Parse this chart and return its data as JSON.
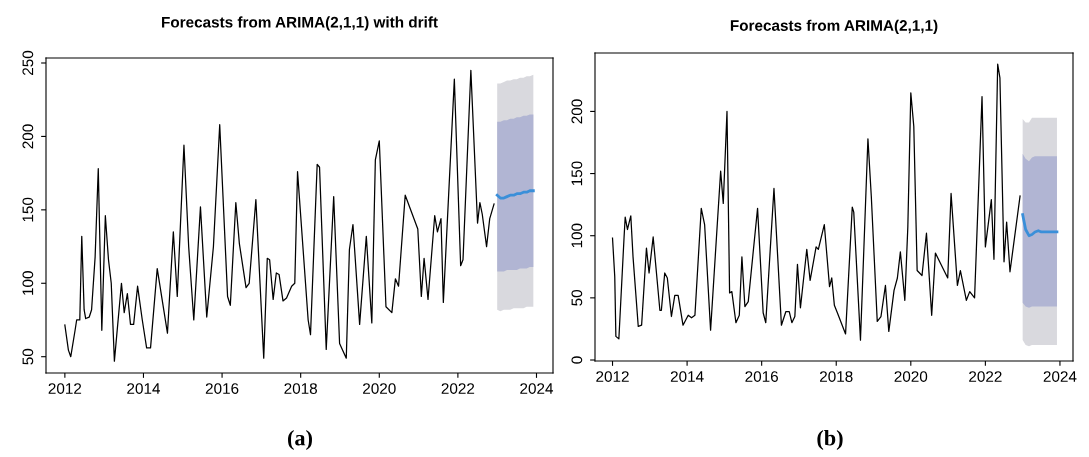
{
  "chart_data": [
    {
      "type": "line",
      "title": "Forecasts from ARIMA(2,1,1) with drift",
      "annotations": [
        "(a)"
      ],
      "xlim": [
        2011.52,
        2024.42
      ],
      "xticks": [
        2012,
        2014,
        2016,
        2018,
        2020,
        2022,
        2024
      ],
      "ylim": [
        38.9,
        253.4
      ],
      "yticks": [
        50,
        100,
        150,
        200,
        250
      ],
      "grid": false,
      "legend": false,
      "series": [
        {
          "color": "#d9d9de",
          "x": [
            2023.0,
            2023.08,
            2023.17,
            2023.25,
            2023.33,
            2023.42,
            2023.5,
            2023.58,
            2023.67,
            2023.75,
            2023.83,
            2023.92
          ],
          "values": [
            null,
            null,
            null,
            null,
            null,
            null,
            null,
            null,
            null,
            null,
            null,
            null
          ],
          "lower": [
            82,
            81,
            82,
            82,
            82,
            83,
            83,
            83,
            83,
            84,
            84,
            84
          ],
          "upper": [
            236,
            236,
            237,
            238,
            238,
            239,
            239,
            240,
            240,
            241,
            241,
            242
          ]
        },
        {
          "color": "#b1b5d3",
          "x": [
            2023.0,
            2023.08,
            2023.17,
            2023.25,
            2023.33,
            2023.42,
            2023.5,
            2023.58,
            2023.67,
            2023.75,
            2023.83,
            2023.92
          ],
          "values": [
            null,
            null,
            null,
            null,
            null,
            null,
            null,
            null,
            null,
            null,
            null,
            null
          ],
          "lower": [
            108,
            108,
            108,
            109,
            109,
            109,
            109,
            110,
            110,
            110,
            111,
            111
          ],
          "upper": [
            210,
            210,
            211,
            211,
            212,
            212,
            213,
            213,
            214,
            214,
            215,
            215
          ]
        },
        {
          "color": "#000000",
          "x": [
            2012.0,
            2012.09,
            2012.15,
            2012.26,
            2012.3,
            2012.38,
            2012.43,
            2012.49,
            2012.53,
            2012.62,
            2012.68,
            2012.77,
            2012.85,
            2012.94,
            2013.03,
            2013.11,
            2013.18,
            2013.26,
            2013.44,
            2013.51,
            2013.59,
            2013.67,
            2013.75,
            2013.85,
            2013.97,
            2014.08,
            2014.18,
            2014.35,
            2014.61,
            2014.76,
            2014.86,
            2015.03,
            2015.15,
            2015.28,
            2015.45,
            2015.61,
            2015.78,
            2015.94,
            2016.14,
            2016.21,
            2016.35,
            2016.44,
            2016.61,
            2016.69,
            2016.86,
            2017.06,
            2017.15,
            2017.21,
            2017.3,
            2017.38,
            2017.45,
            2017.55,
            2017.64,
            2017.77,
            2017.85,
            2017.92,
            2018.19,
            2018.25,
            2018.42,
            2018.48,
            2018.65,
            2018.84,
            2018.99,
            2019.16,
            2019.24,
            2019.33,
            2019.5,
            2019.67,
            2019.81,
            2019.9,
            2020.0,
            2020.17,
            2020.32,
            2020.41,
            2020.49,
            2020.66,
            2020.98,
            2021.07,
            2021.14,
            2021.24,
            2021.41,
            2021.48,
            2021.57,
            2021.63,
            2021.91,
            2022.07,
            2022.13,
            2022.33,
            2022.5,
            2022.56,
            2022.62,
            2022.73,
            2022.81,
            2022.92
          ],
          "values": [
            71.6,
            54.5,
            50,
            68,
            75,
            75,
            132,
            82,
            76,
            77,
            82,
            118,
            178,
            68,
            146,
            116,
            100,
            47,
            100,
            80,
            93,
            72,
            72,
            98,
            75,
            56,
            56,
            110,
            66,
            135,
            91,
            194,
            125,
            75,
            152,
            77,
            125,
            208,
            91,
            85,
            155,
            127,
            97,
            100,
            157,
            49,
            117,
            116,
            89,
            107,
            106,
            88,
            90,
            98,
            100,
            176,
            75,
            65,
            181,
            179,
            55,
            159,
            59,
            49,
            123,
            140,
            72,
            132,
            73,
            184,
            197,
            84,
            80,
            103,
            98,
            160,
            137,
            91,
            117,
            89,
            146,
            135,
            144,
            87,
            239,
            112,
            116,
            245,
            141,
            155,
            147,
            125,
            144,
            154
          ]
        },
        {
          "color": "#3a8fd9",
          "x": [
            2023.0,
            2023.08,
            2023.17,
            2023.25,
            2023.33,
            2023.42,
            2023.5,
            2023.58,
            2023.67,
            2023.75,
            2023.83,
            2023.92
          ],
          "values": [
            160,
            158,
            158,
            159,
            160,
            160,
            161,
            161,
            162,
            162,
            163,
            163
          ]
        }
      ]
    },
    {
      "type": "line",
      "title": "Forecasts from ARIMA(2,1,1)",
      "annotations": [
        "(b)"
      ],
      "xlim": [
        2011.53,
        2024.35
      ],
      "xticks": [
        2012,
        2014,
        2016,
        2018,
        2020,
        2022,
        2024
      ],
      "ylim": [
        -0.8,
        247
      ],
      "yticks": [
        0,
        50,
        100,
        150,
        200
      ],
      "grid": false,
      "legend": false,
      "series": [
        {
          "color": "#d9d9de",
          "x": [
            2023.0,
            2023.08,
            2023.17,
            2023.25,
            2023.33,
            2023.42,
            2023.5,
            2023.58,
            2023.67,
            2023.75,
            2023.83,
            2023.92
          ],
          "values": [
            null,
            null,
            null,
            null,
            null,
            null,
            null,
            null,
            null,
            null,
            null,
            null
          ],
          "lower": [
            16,
            12,
            11,
            12,
            12,
            12,
            12,
            12,
            12,
            12,
            12,
            12
          ],
          "upper": [
            194,
            191,
            191,
            195,
            195,
            195,
            195,
            195,
            195,
            195,
            195,
            195
          ]
        },
        {
          "color": "#b1b5d3",
          "x": [
            2023.0,
            2023.08,
            2023.17,
            2023.25,
            2023.33,
            2023.42,
            2023.5,
            2023.58,
            2023.67,
            2023.75,
            2023.83,
            2023.92
          ],
          "values": [
            null,
            null,
            null,
            null,
            null,
            null,
            null,
            null,
            null,
            null,
            null,
            null
          ],
          "lower": [
            46,
            43,
            42,
            43,
            43,
            43,
            43,
            43,
            43,
            43,
            43,
            43
          ],
          "upper": [
            166,
            162,
            160,
            163,
            164,
            164,
            164,
            164,
            164,
            164,
            164,
            164
          ]
        },
        {
          "color": "#000000",
          "x": [
            2012.0,
            2012.06,
            2012.09,
            2012.17,
            2012.31,
            2012.34,
            2012.4,
            2012.44,
            2012.49,
            2012.55,
            2012.69,
            2012.78,
            2012.91,
            2012.98,
            2013.09,
            2013.27,
            2013.31,
            2013.4,
            2013.47,
            2013.58,
            2013.67,
            2013.76,
            2013.89,
            2014.03,
            2014.12,
            2014.21,
            2014.38,
            2014.47,
            2014.63,
            2014.9,
            2014.97,
            2015.07,
            2015.14,
            2015.2,
            2015.31,
            2015.4,
            2015.47,
            2015.55,
            2015.64,
            2015.89,
            2016.04,
            2016.11,
            2016.33,
            2016.53,
            2016.65,
            2016.74,
            2016.81,
            2016.89,
            2016.96,
            2017.04,
            2017.21,
            2017.3,
            2017.46,
            2017.52,
            2017.68,
            2017.82,
            2017.88,
            2017.95,
            2018.03,
            2018.25,
            2018.43,
            2018.47,
            2018.65,
            2018.85,
            2018.94,
            2019.1,
            2019.2,
            2019.32,
            2019.41,
            2019.55,
            2019.64,
            2019.72,
            2019.84,
            2019.92,
            2020.0,
            2020.08,
            2020.17,
            2020.3,
            2020.42,
            2020.56,
            2020.66,
            2020.99,
            2021.08,
            2021.25,
            2021.33,
            2021.49,
            2021.58,
            2021.71,
            2021.91,
            2022.0,
            2022.16,
            2022.23,
            2022.33,
            2022.39,
            2022.5,
            2022.57,
            2022.66,
            2022.93
          ],
          "values": [
            98,
            67,
            19,
            17,
            99,
            115,
            105,
            110,
            116,
            83,
            27,
            28,
            90,
            70,
            99,
            40,
            40,
            70,
            66,
            35,
            52,
            52,
            28,
            36,
            34,
            36,
            122,
            109,
            24,
            152,
            126,
            200,
            54,
            55,
            30,
            36,
            83,
            43,
            47,
            122,
            38,
            30,
            138,
            28,
            39,
            39,
            30,
            35,
            77,
            42,
            89,
            64,
            91,
            89,
            109,
            59,
            66,
            44,
            38,
            21,
            123,
            119,
            16,
            178,
            132,
            31,
            35,
            60,
            23,
            56,
            66,
            87,
            48,
            107,
            215,
            188,
            72,
            68,
            102,
            36,
            86,
            66,
            134,
            60,
            72,
            48,
            55,
            50,
            212,
            91,
            129,
            81,
            238,
            227,
            79,
            111,
            71,
            132
          ]
        },
        {
          "color": "#3a8fd9",
          "x": [
            2023.0,
            2023.08,
            2023.17,
            2023.25,
            2023.33,
            2023.42,
            2023.5,
            2023.58,
            2023.67,
            2023.75,
            2023.83,
            2023.92
          ],
          "values": [
            117,
            105,
            100,
            101,
            103,
            104,
            103,
            103,
            103,
            103,
            103,
            103
          ]
        }
      ]
    }
  ]
}
